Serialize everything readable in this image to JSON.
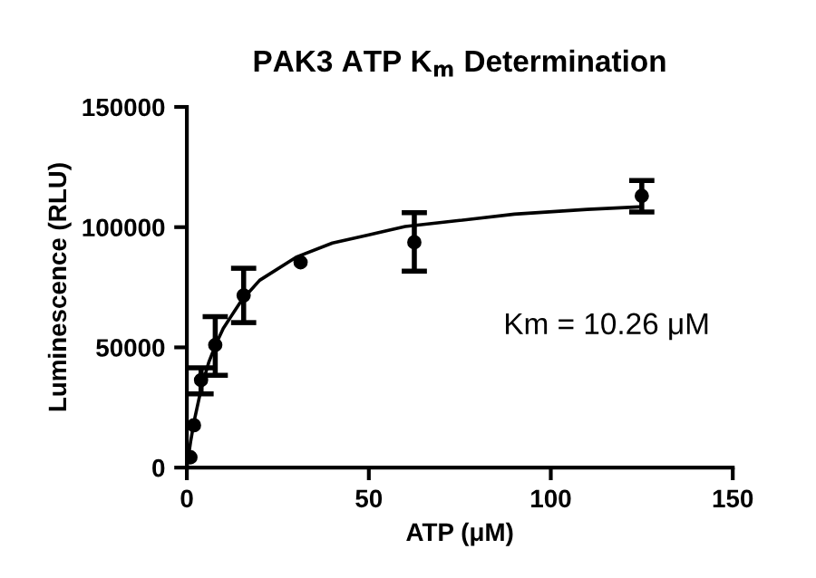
{
  "chart_data": {
    "type": "scatter",
    "title": "PAK3 ATP K$_{m}$ Determination",
    "xlabel": "ATP (μM)",
    "ylabel": "Luminescence (RLU)",
    "annotations": [
      "Km = 10.26 μM"
    ],
    "xlim": [
      0,
      150
    ],
    "xticks": [
      0,
      50,
      100,
      150
    ],
    "ylim": [
      0,
      150000
    ],
    "yticks": [
      0,
      50000,
      100000,
      150000
    ],
    "grid": false,
    "legend": false,
    "marker": "circle",
    "series": [
      {
        "color": "#000000",
        "x": [
          0.98,
          1.95,
          3.9,
          7.8,
          15.6,
          31.25,
          62.5,
          125
        ],
        "values": [
          4300,
          17600,
          36400,
          51000,
          71600,
          85400,
          93700,
          113000
        ],
        "errors": [
          null,
          null,
          [
            30700,
            41500
          ],
          [
            38400,
            62800
          ],
          [
            60300,
            82900
          ],
          null,
          [
            81700,
            106000
          ],
          [
            106300,
            119400
          ]
        ]
      },
      {
        "type": "line",
        "color": "#000000",
        "marker": "none",
        "line_style": "solid",
        "x": [
          0,
          1,
          2,
          4,
          6,
          8,
          10,
          15,
          20,
          30,
          40,
          50,
          60,
          75,
          90,
          110,
          125
        ],
        "values": [
          0,
          10500,
          19300,
          33300,
          43700,
          51400,
          57900,
          69500,
          77900,
          87500,
          93400,
          96800,
          100300,
          102800,
          105400,
          107400,
          108500
        ]
      }
    ]
  }
}
